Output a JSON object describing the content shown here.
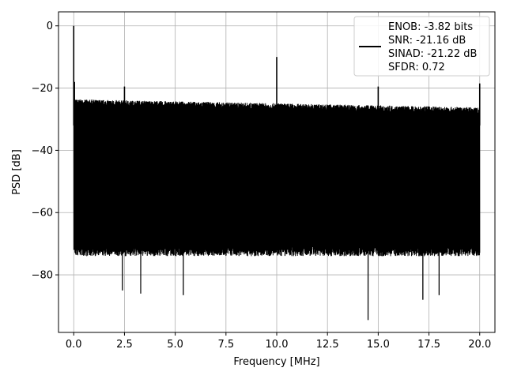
{
  "chart_data": {
    "type": "line",
    "title": "",
    "xlabel": "Frequency [MHz]",
    "ylabel": "PSD [dB]",
    "xlim": [
      -0.75,
      20.75
    ],
    "ylim": [
      -98.5,
      4.5
    ],
    "xticks": [
      0.0,
      2.5,
      5.0,
      7.5,
      10.0,
      12.5,
      15.0,
      17.5,
      20.0
    ],
    "xtick_labels": [
      "0.0",
      "2.5",
      "5.0",
      "7.5",
      "10.0",
      "12.5",
      "15.0",
      "17.5",
      "20.0"
    ],
    "yticks": [
      0,
      -20,
      -40,
      -60,
      -80
    ],
    "ytick_labels": [
      "0",
      "−20",
      "−40",
      "−60",
      "−80"
    ],
    "grid": true,
    "legend_position": "upper-right",
    "series": [
      {
        "color": "#000000",
        "noise_band_top_db": -26,
        "noise_band_bottom_db": -70,
        "peaks": [
          {
            "x": 0.0,
            "y": 0
          },
          {
            "x": 2.5,
            "y": -19.5
          },
          {
            "x": 10.0,
            "y": -10
          },
          {
            "x": 15.0,
            "y": -19.5
          },
          {
            "x": 20.0,
            "y": -18.5
          }
        ],
        "min_dips": [
          {
            "x": 2.4,
            "y": -85
          },
          {
            "x": 3.3,
            "y": -86
          },
          {
            "x": 5.4,
            "y": -86.5
          },
          {
            "x": 14.5,
            "y": -94.5
          },
          {
            "x": 17.2,
            "y": -88
          },
          {
            "x": 18.0,
            "y": -86.5
          }
        ]
      }
    ],
    "legend": {
      "lines": [
        "ENOB: -3.82 bits",
        "SNR: -21.16 dB",
        "SINAD: -21.22 dB",
        "SFDR: 0.72"
      ]
    }
  }
}
